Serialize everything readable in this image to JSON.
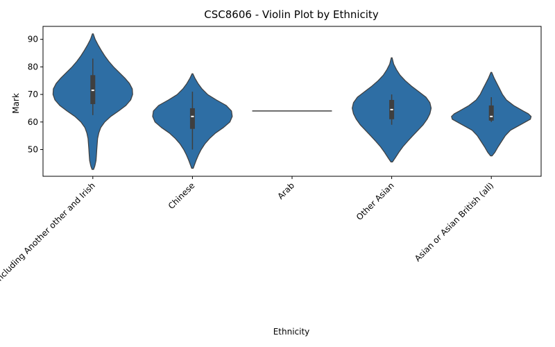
{
  "chart_data": {
    "type": "violin",
    "title": "CSC8606 - Violin Plot by Ethnicity",
    "xlabel": "Ethnicity",
    "ylabel": "Mark",
    "ylim": [
      40.3,
      94.7
    ],
    "yticks": [
      50,
      60,
      70,
      80,
      90
    ],
    "grid": false,
    "color": "#2e6ea4",
    "edge_color": "#3f3f3f",
    "box_color": "#3f3f3f",
    "median_color": "#ffffff",
    "categories": [
      "White including Another other and Irish",
      "Chinese",
      "Arab",
      "Other Asian",
      "Asian or Asian British (all)"
    ],
    "violins": [
      {
        "name": "White including Another other and Irish",
        "min": 62.5,
        "q1": 66.5,
        "median": 71.5,
        "q3": 77,
        "max": 83,
        "density": [
          [
            42.8,
            0.02
          ],
          [
            44,
            0.05
          ],
          [
            46,
            0.08
          ],
          [
            48,
            0.09
          ],
          [
            50,
            0.1
          ],
          [
            52,
            0.11
          ],
          [
            54,
            0.12
          ],
          [
            56,
            0.15
          ],
          [
            58,
            0.2
          ],
          [
            60,
            0.3
          ],
          [
            62,
            0.45
          ],
          [
            64,
            0.65
          ],
          [
            66,
            0.83
          ],
          [
            68,
            0.95
          ],
          [
            70,
            1.0
          ],
          [
            72,
            0.99
          ],
          [
            74,
            0.92
          ],
          [
            76,
            0.8
          ],
          [
            78,
            0.66
          ],
          [
            80,
            0.52
          ],
          [
            82,
            0.4
          ],
          [
            84,
            0.3
          ],
          [
            86,
            0.21
          ],
          [
            88,
            0.13
          ],
          [
            90,
            0.06
          ],
          [
            92,
            0.01
          ]
        ]
      },
      {
        "name": "Chinese",
        "min": 50,
        "q1": 57.5,
        "median": 62,
        "q3": 65,
        "max": 71,
        "density": [
          [
            43.2,
            0.02
          ],
          [
            44,
            0.04
          ],
          [
            46,
            0.09
          ],
          [
            48,
            0.15
          ],
          [
            50,
            0.22
          ],
          [
            52,
            0.31
          ],
          [
            54,
            0.43
          ],
          [
            56,
            0.58
          ],
          [
            58,
            0.78
          ],
          [
            60,
            0.94
          ],
          [
            62,
            1.0
          ],
          [
            64,
            0.98
          ],
          [
            66,
            0.85
          ],
          [
            68,
            0.6
          ],
          [
            70,
            0.38
          ],
          [
            72,
            0.24
          ],
          [
            74,
            0.14
          ],
          [
            76,
            0.06
          ],
          [
            77.5,
            0.01
          ]
        ]
      },
      {
        "name": "Arab",
        "single_value": 64
      },
      {
        "name": "Other Asian",
        "min": 59,
        "q1": 61,
        "median": 64.5,
        "q3": 68,
        "max": 70,
        "density": [
          [
            45.5,
            0.02
          ],
          [
            47,
            0.09
          ],
          [
            49,
            0.18
          ],
          [
            51,
            0.28
          ],
          [
            53,
            0.4
          ],
          [
            55,
            0.53
          ],
          [
            57,
            0.66
          ],
          [
            59,
            0.79
          ],
          [
            61,
            0.89
          ],
          [
            63,
            0.96
          ],
          [
            65,
            0.99
          ],
          [
            67,
            0.96
          ],
          [
            69,
            0.86
          ],
          [
            71,
            0.68
          ],
          [
            73,
            0.5
          ],
          [
            75,
            0.34
          ],
          [
            77,
            0.21
          ],
          [
            79,
            0.12
          ],
          [
            81,
            0.05
          ],
          [
            83.3,
            0.01
          ]
        ]
      },
      {
        "name": "Asian or Asian British (all)",
        "min": 60,
        "q1": 60.5,
        "median": 62,
        "q3": 66,
        "max": 69,
        "density": [
          [
            47.7,
            0.02
          ],
          [
            49,
            0.09
          ],
          [
            51,
            0.17
          ],
          [
            53,
            0.26
          ],
          [
            55,
            0.35
          ],
          [
            57,
            0.48
          ],
          [
            59,
            0.73
          ],
          [
            61,
            0.98
          ],
          [
            62,
            1.0
          ],
          [
            63,
            0.93
          ],
          [
            64,
            0.8
          ],
          [
            66,
            0.56
          ],
          [
            68,
            0.38
          ],
          [
            70,
            0.28
          ],
          [
            72,
            0.21
          ],
          [
            74,
            0.14
          ],
          [
            76,
            0.07
          ],
          [
            78,
            0.01
          ]
        ]
      }
    ]
  }
}
